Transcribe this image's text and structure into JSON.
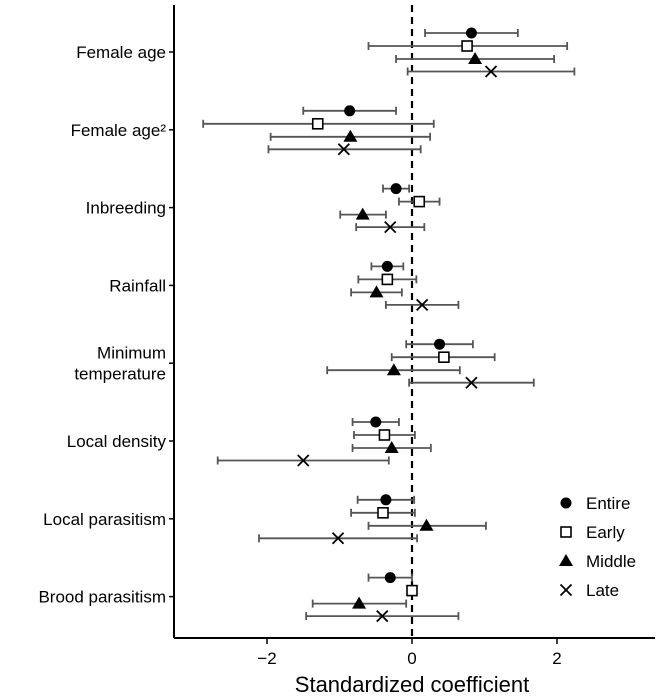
{
  "chart_data": {
    "type": "scatter",
    "subtype": "forest-plot",
    "xlabel": "Standardized coefficient",
    "xlim": [
      -3.3,
      3.3
    ],
    "xticks": [
      -2,
      0,
      2
    ],
    "xtick_labels": [
      "−2",
      "0",
      "2"
    ],
    "reference_line": {
      "x": 0,
      "style": "dashed"
    },
    "legend_position": "bottom-right",
    "categories": [
      "Female age",
      "Female age²",
      "Inbreeding",
      "Rainfall",
      "Minimum temperature",
      "Local density",
      "Local parasitism",
      "Brood parasitism"
    ],
    "category_labels": [
      [
        "Female age"
      ],
      [
        "Female age²"
      ],
      [
        "Inbreeding"
      ],
      [
        "Rainfall"
      ],
      [
        "Minimum",
        "temperature"
      ],
      [
        "Local density"
      ],
      [
        "Local parasitism"
      ],
      [
        "Brood parasitism"
      ]
    ],
    "series": [
      {
        "name": "Entire",
        "marker": "filled-circle",
        "estimates": [
          0.82,
          -0.86,
          -0.22,
          -0.34,
          0.38,
          -0.5,
          -0.36,
          -0.3
        ],
        "lower": [
          0.18,
          -1.5,
          -0.4,
          -0.56,
          -0.08,
          -0.82,
          -0.75,
          -0.6
        ],
        "upper": [
          1.46,
          -0.22,
          -0.04,
          -0.12,
          0.84,
          -0.18,
          0.03,
          0.0
        ]
      },
      {
        "name": "Early",
        "marker": "open-square",
        "estimates": [
          0.76,
          -1.3,
          0.1,
          -0.34,
          0.44,
          -0.38,
          -0.4,
          0.0
        ],
        "lower": [
          -0.6,
          -2.88,
          -0.18,
          -0.74,
          -0.28,
          -0.8,
          -0.84,
          -0.04
        ],
        "upper": [
          2.14,
          0.3,
          0.38,
          0.06,
          1.14,
          0.04,
          0.04,
          0.04
        ]
      },
      {
        "name": "Middle",
        "marker": "filled-triangle",
        "estimates": [
          0.87,
          -0.85,
          -0.68,
          -0.49,
          -0.25,
          -0.28,
          0.2,
          -0.73
        ],
        "lower": [
          -0.22,
          -1.95,
          -0.99,
          -0.84,
          -1.17,
          -0.82,
          -0.6,
          -1.37
        ],
        "upper": [
          1.96,
          0.25,
          -0.36,
          -0.14,
          0.66,
          0.26,
          1.02,
          -0.08
        ]
      },
      {
        "name": "Late",
        "marker": "x-cross",
        "estimates": [
          1.09,
          -0.94,
          -0.3,
          0.14,
          0.82,
          -1.5,
          -1.02,
          -0.41
        ],
        "lower": [
          -0.06,
          -1.98,
          -0.77,
          -0.36,
          -0.04,
          -2.68,
          -2.11,
          -1.46
        ],
        "upper": [
          2.24,
          0.12,
          0.17,
          0.64,
          1.68,
          -0.32,
          0.07,
          0.64
        ]
      }
    ]
  },
  "colors": {
    "marker": "#000000",
    "errorbar": "#555555",
    "axis": "#000000",
    "reference_line": "#000000"
  }
}
